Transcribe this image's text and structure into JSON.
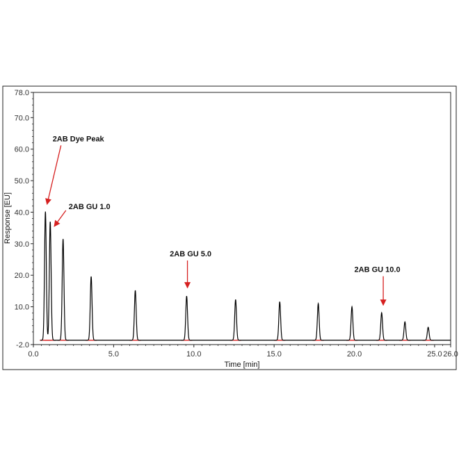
{
  "chart_data": {
    "type": "line",
    "title": "",
    "xlabel": "Time [min]",
    "ylabel": "Response [EU]",
    "xlim": [
      0,
      26
    ],
    "ylim": [
      -2,
      78
    ],
    "xticks": [
      "0.0",
      "5.0",
      "10.0",
      "15.0",
      "20.0",
      "25.0",
      "26.0"
    ],
    "yticks": [
      "78.0",
      "70.0",
      "60.0",
      "50.0",
      "40.0",
      "30.0",
      "20.0",
      "10.0",
      "-2.0"
    ],
    "baseline": -0.6,
    "grid": false,
    "legend": "none",
    "series": [
      {
        "color": "#000000",
        "peaks": [
          {
            "x": 0.75,
            "y": 40.2
          },
          {
            "x": 1.05,
            "y": 37.0
          },
          {
            "x": 1.85,
            "y": 31.5
          },
          {
            "x": 3.6,
            "y": 19.6
          },
          {
            "x": 6.35,
            "y": 15.2
          },
          {
            "x": 9.55,
            "y": 13.4
          },
          {
            "x": 12.6,
            "y": 12.3
          },
          {
            "x": 15.35,
            "y": 11.6
          },
          {
            "x": 17.75,
            "y": 11.0
          },
          {
            "x": 19.85,
            "y": 10.0
          },
          {
            "x": 21.7,
            "y": 8.1
          },
          {
            "x": 23.15,
            "y": 5.2
          },
          {
            "x": 24.6,
            "y": 3.5
          }
        ]
      }
    ],
    "baseline_marks_color": "#d62020",
    "annotations": [
      {
        "text": "2AB Dye Peak",
        "x": 1.2,
        "y": 62.5,
        "target_x": 0.85,
        "target_y": 42.5
      },
      {
        "text": "2AB GU 1.0",
        "x": 2.2,
        "y": 41.0,
        "target_x": 1.3,
        "target_y": 35.5
      },
      {
        "text": "2AB GU 5.0",
        "x": 8.5,
        "y": 26.0,
        "target_x": 9.6,
        "target_y": 16.0
      },
      {
        "text": "2AB GU 10.0",
        "x": 20.0,
        "y": 21.0,
        "target_x": 21.8,
        "target_y": 10.5
      }
    ],
    "arrow_color": "#d62020"
  }
}
